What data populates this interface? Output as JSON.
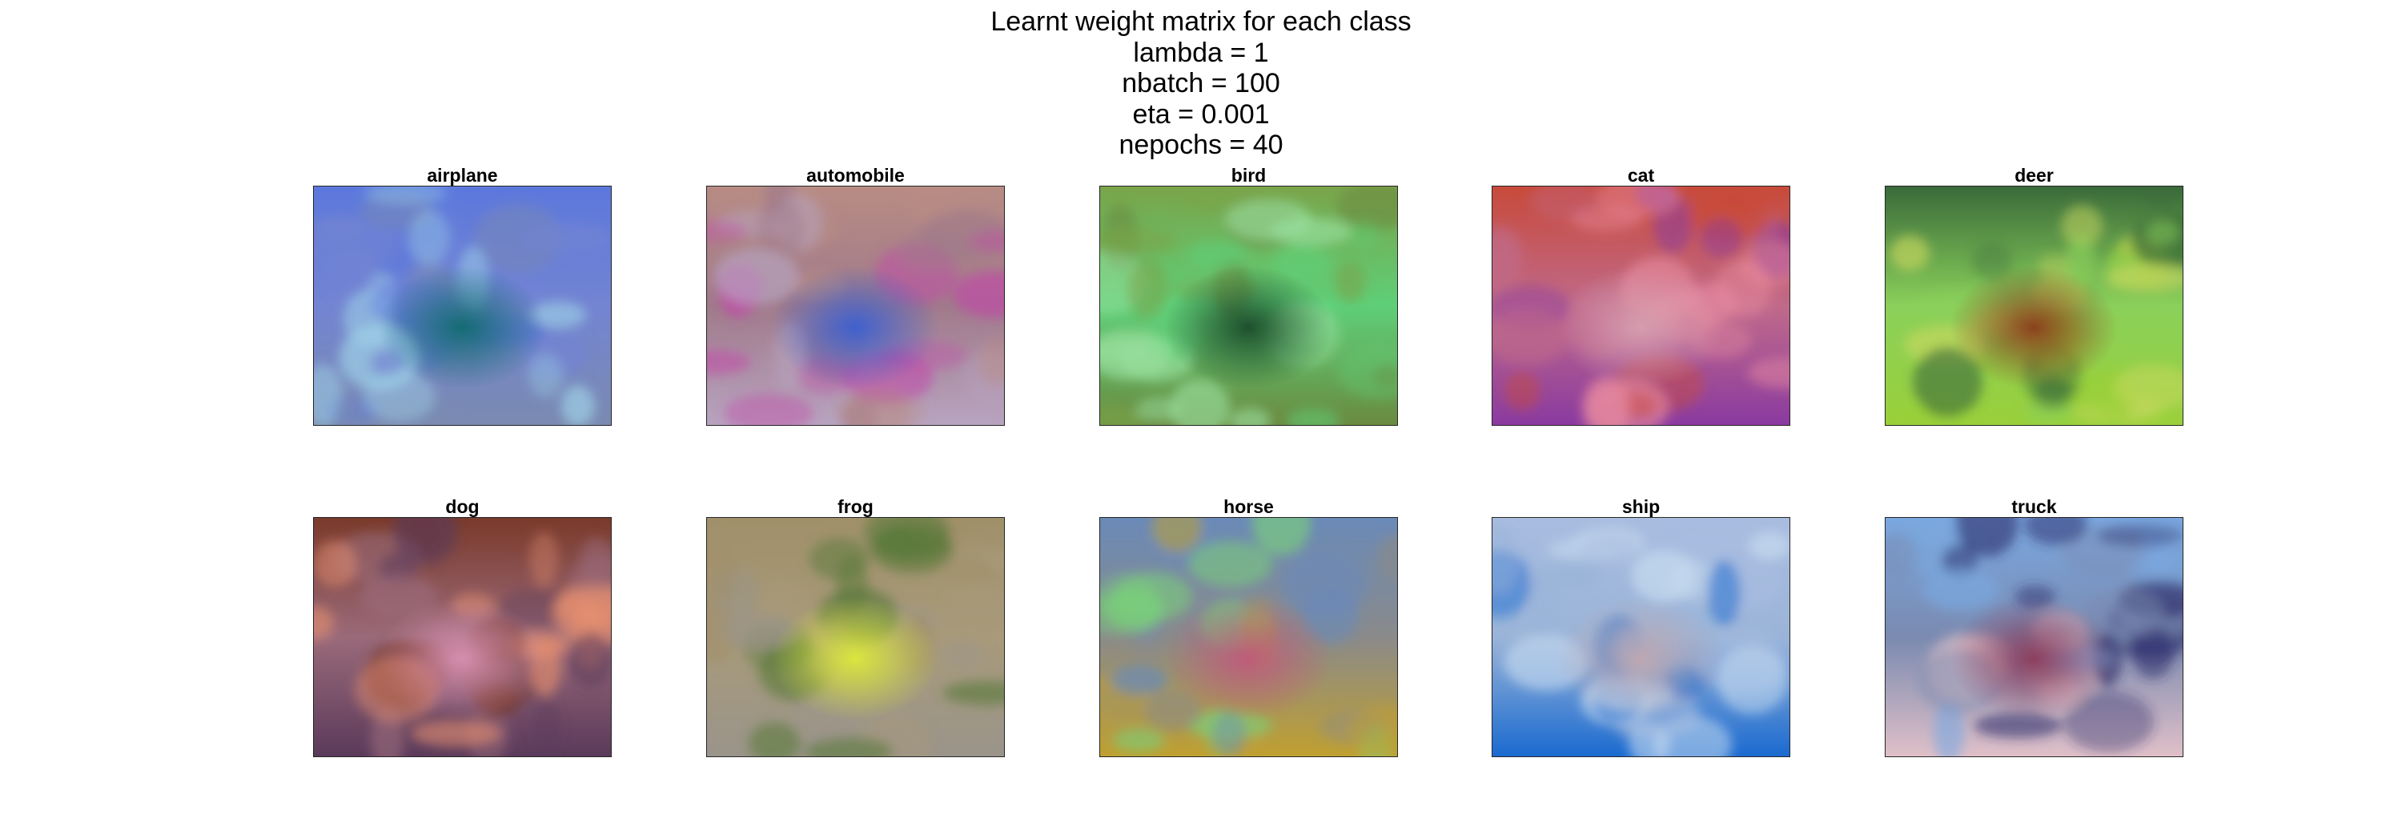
{
  "title_lines": [
    "Learnt weight matrix for each class",
    "lambda = 1",
    "nbatch = 100",
    "eta = 0.001",
    "nepochs = 40"
  ],
  "chart_data": {
    "type": "image-grid",
    "title": "Learnt weight matrix for each class",
    "parameters": {
      "lambda": 1,
      "nbatch": 100,
      "eta": 0.001,
      "nepochs": 40
    },
    "grid": {
      "rows": 2,
      "columns": 5
    },
    "axes_ticks": false,
    "panels": [
      {
        "label": "airplane",
        "colors": {
          "base": "#7384d2",
          "center": "#0f6a6f",
          "top": "#5c78dc",
          "bottom": "#7a8ab0",
          "accent": "#9fd4e8"
        }
      },
      {
        "label": "automobile",
        "colors": {
          "base": "#a07a8a",
          "center": "#3a5fd0",
          "top": "#b88c84",
          "bottom": "#b8a4c0",
          "accent": "#c04aa8"
        }
      },
      {
        "label": "bird",
        "colors": {
          "base": "#5ecf78",
          "center": "#1a4a2a",
          "top": "#7aa44a",
          "bottom": "#6a8a40",
          "accent": "#9ae0a0"
        }
      },
      {
        "label": "cat",
        "colors": {
          "base": "#c06a8a",
          "center": "#d8a0b0",
          "top": "#c84a3a",
          "bottom": "#8a3aa0",
          "accent": "#e88aa0"
        }
      },
      {
        "label": "deer",
        "colors": {
          "base": "#8ad05a",
          "center": "#8a3a1a",
          "top": "#3a6a3a",
          "bottom": "#9ad03a",
          "accent": "#c8d860"
        }
      },
      {
        "label": "dog",
        "colors": {
          "base": "#9a6a7a",
          "center": "#d890b0",
          "top": "#7a3a2a",
          "bottom": "#5a3a5a",
          "accent": "#e89070"
        }
      },
      {
        "label": "frog",
        "colors": {
          "base": "#a89a7a",
          "center": "#dcea3a",
          "top": "#a0906a",
          "bottom": "#9a948a",
          "accent": "#5a7a3a"
        }
      },
      {
        "label": "horse",
        "colors": {
          "base": "#8a8a8a",
          "center": "#c05a7a",
          "top": "#6a8ab8",
          "bottom": "#c0a030",
          "accent": "#7ad07a"
        }
      },
      {
        "label": "ship",
        "colors": {
          "base": "#9ab4d8",
          "center": "#c0a8b0",
          "top": "#a8bce0",
          "bottom": "#1a6ad0",
          "accent": "#c8dcf0"
        }
      },
      {
        "label": "truck",
        "colors": {
          "base": "#7a8ab0",
          "center": "#8a3a5a",
          "top": "#7aa8e0",
          "bottom": "#e0c0c8",
          "accent": "#2a2a6a"
        }
      }
    ]
  }
}
